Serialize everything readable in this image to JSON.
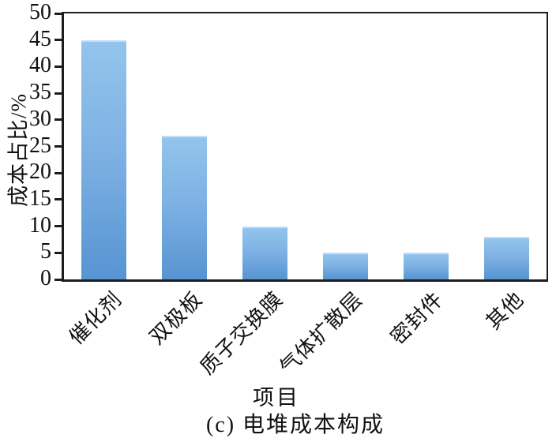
{
  "chart_data": {
    "type": "bar",
    "title": "(c) 电堆成本构成",
    "xlabel": "项目",
    "ylabel": "成本占比/%",
    "categories": [
      "催化剂",
      "双极板",
      "质子交换膜",
      "气体扩散层",
      "密封件",
      "其他"
    ],
    "values": [
      45,
      27,
      10,
      5,
      5,
      8
    ],
    "ylim": [
      0,
      50
    ],
    "ytick_step": 5,
    "ytick_labels": [
      "0",
      "5",
      "10",
      "15",
      "20",
      "25",
      "30",
      "35",
      "40",
      "45",
      "50"
    ],
    "grid": false,
    "legend": "none",
    "bar_color_top": "#93c4ec",
    "bar_color_mid": "#7fb2e4",
    "bar_color_bottom": "#5794d2",
    "axis_color": "#1c1c1c",
    "background_color": "#ffffff"
  }
}
